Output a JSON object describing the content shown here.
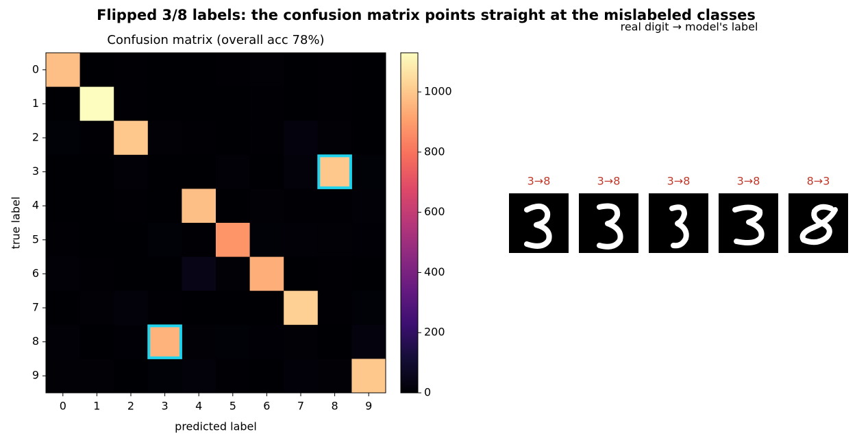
{
  "chart_data": {
    "type": "heatmap",
    "title": "Flipped 3/8 labels: the confusion matrix points straight at the mislabeled classes",
    "subtitle": "Confusion matrix (overall acc 78%)",
    "xlabel": "predicted label",
    "ylabel": "true label",
    "x_categories": [
      "0",
      "1",
      "2",
      "3",
      "4",
      "5",
      "6",
      "7",
      "8",
      "9"
    ],
    "y_categories": [
      "0",
      "1",
      "2",
      "3",
      "4",
      "5",
      "6",
      "7",
      "8",
      "9"
    ],
    "values": [
      [
        980,
        0,
        2,
        1,
        0,
        3,
        5,
        1,
        2,
        1
      ],
      [
        0,
        1130,
        2,
        1,
        0,
        1,
        2,
        1,
        3,
        0
      ],
      [
        8,
        2,
        1000,
        5,
        3,
        0,
        2,
        20,
        5,
        1
      ],
      [
        0,
        1,
        6,
        0,
        0,
        10,
        0,
        15,
        1000,
        8
      ],
      [
        1,
        0,
        3,
        0,
        980,
        0,
        5,
        2,
        2,
        10
      ],
      [
        3,
        0,
        0,
        8,
        2,
        880,
        8,
        10,
        5,
        4
      ],
      [
        10,
        3,
        1,
        0,
        40,
        5,
        940,
        0,
        3,
        0
      ],
      [
        1,
        5,
        15,
        3,
        1,
        0,
        0,
        1020,
        3,
        8
      ],
      [
        10,
        1,
        4,
        950,
        5,
        8,
        4,
        5,
        0,
        20
      ],
      [
        5,
        5,
        1,
        8,
        15,
        3,
        1,
        12,
        5,
        1000
      ]
    ],
    "colormap": "magma",
    "colorbar_lim": [
      0,
      1130
    ],
    "colorbar_ticks": [
      0,
      200,
      400,
      600,
      800,
      1000
    ],
    "highlight": [
      [
        3,
        8
      ],
      [
        8,
        3
      ]
    ],
    "highlight_color": "#22d3ee"
  },
  "examples": {
    "caption": "real digit → model's label",
    "labels": [
      "3→8",
      "3→8",
      "3→8",
      "3→8",
      "8→3"
    ],
    "label_color": "#c0392b"
  }
}
